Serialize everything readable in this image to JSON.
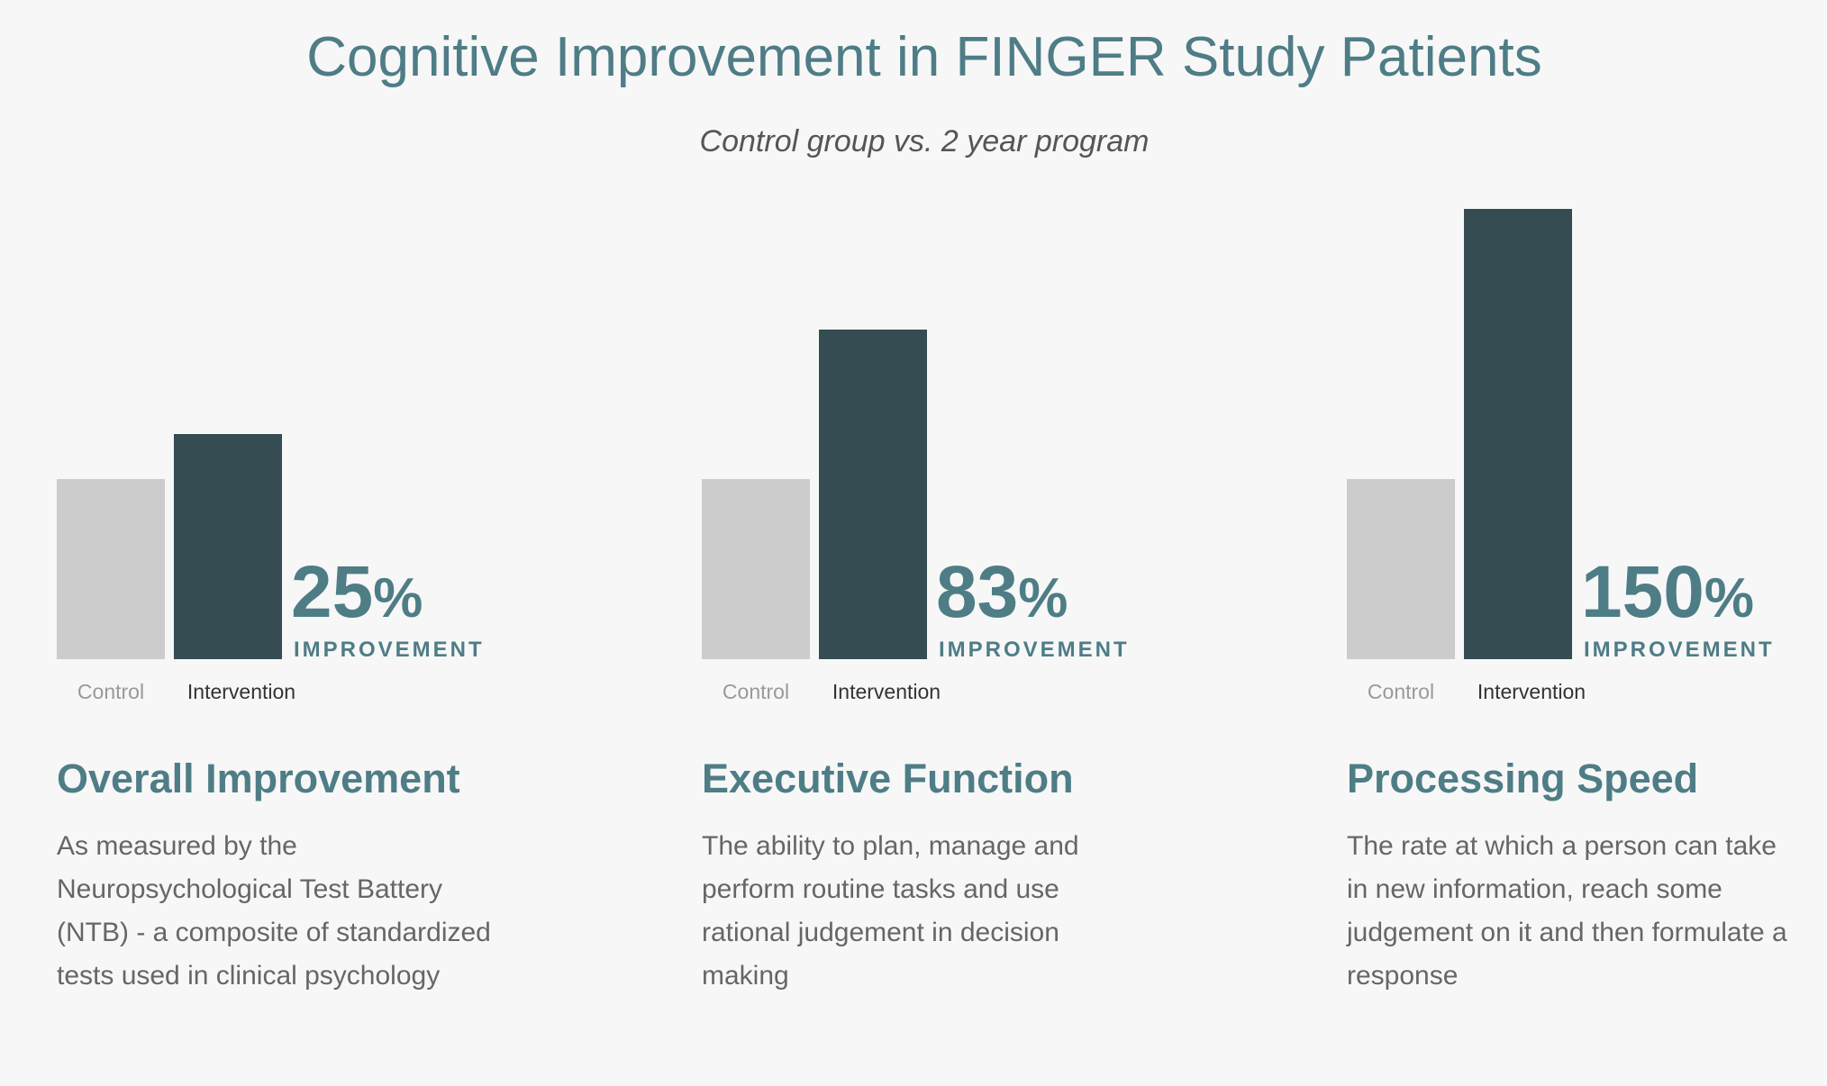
{
  "title": "Cognitive Improvement in FINGER Study Patients",
  "subtitle": "Control group vs. 2 year program",
  "colors": {
    "accent": "#4e7d86",
    "control_bar": "#cccccc",
    "intervention_bar": "#344c52",
    "body_text": "#666666",
    "control_label": "#999999",
    "intervention_label": "#333333"
  },
  "chart_data": [
    {
      "type": "bar",
      "title": "Overall Improvement",
      "categories": [
        "Control",
        "Intervention"
      ],
      "values": [
        1,
        1.25
      ],
      "improvement_value": "25",
      "improvement_unit": "%",
      "improvement_label": "IMPROVEMENT",
      "description": "As measured by the Neuropsychological Test Battery (NTB) - a composite of standardized tests used in clinical psychology"
    },
    {
      "type": "bar",
      "title": "Executive Function",
      "categories": [
        "Control",
        "Intervention"
      ],
      "values": [
        1,
        1.83
      ],
      "improvement_value": "83",
      "improvement_unit": "%",
      "improvement_label": "IMPROVEMENT",
      "description": "The ability to plan, manage and perform routine tasks and use rational judgement in decision making"
    },
    {
      "type": "bar",
      "title": "Processing Speed",
      "categories": [
        "Control",
        "Intervention"
      ],
      "values": [
        1,
        2.5
      ],
      "improvement_value": "150",
      "improvement_unit": "%",
      "improvement_label": "IMPROVEMENT",
      "description": "The rate at which a person can take in new information, reach some judgement on it and then formulate a response"
    }
  ]
}
